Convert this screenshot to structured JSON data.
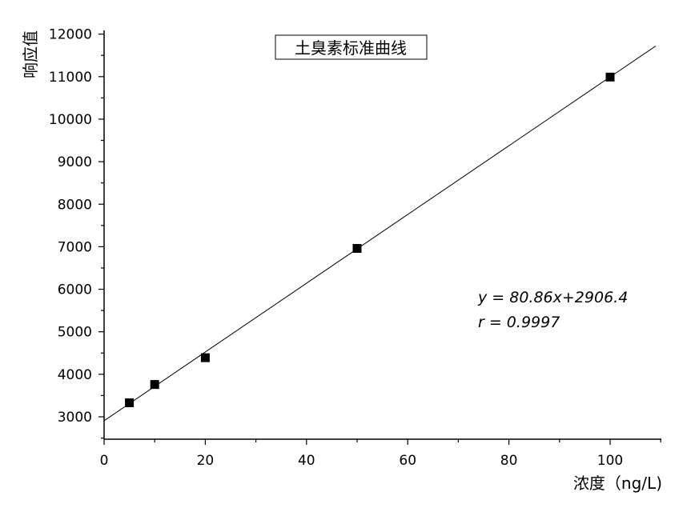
{
  "chart_data": {
    "type": "scatter",
    "title": "土臭素标准曲线",
    "xlabel": "浓度（ng/L)",
    "ylabel": "响应值",
    "xlim": [
      0,
      110
    ],
    "ylim": [
      2500,
      12000
    ],
    "x_ticks": [
      "0",
      "20",
      "40",
      "60",
      "80",
      "100"
    ],
    "y_ticks": [
      "3000",
      "4000",
      "5000",
      "6000",
      "7000",
      "8000",
      "9000",
      "10000",
      "11000",
      "12000"
    ],
    "grid": false,
    "series": [
      {
        "x": [
          5,
          10,
          20,
          50,
          100
        ],
        "y": [
          3330,
          3760,
          4390,
          6960,
          10990
        ],
        "marker": "square",
        "color": "#000000"
      }
    ],
    "fit_line": {
      "slope": 80.86,
      "intercept": 2906.4,
      "x_range": [
        0,
        109
      ]
    },
    "annotations": [
      "y = 80.86x+2906.4",
      "r = 0.9997"
    ]
  }
}
